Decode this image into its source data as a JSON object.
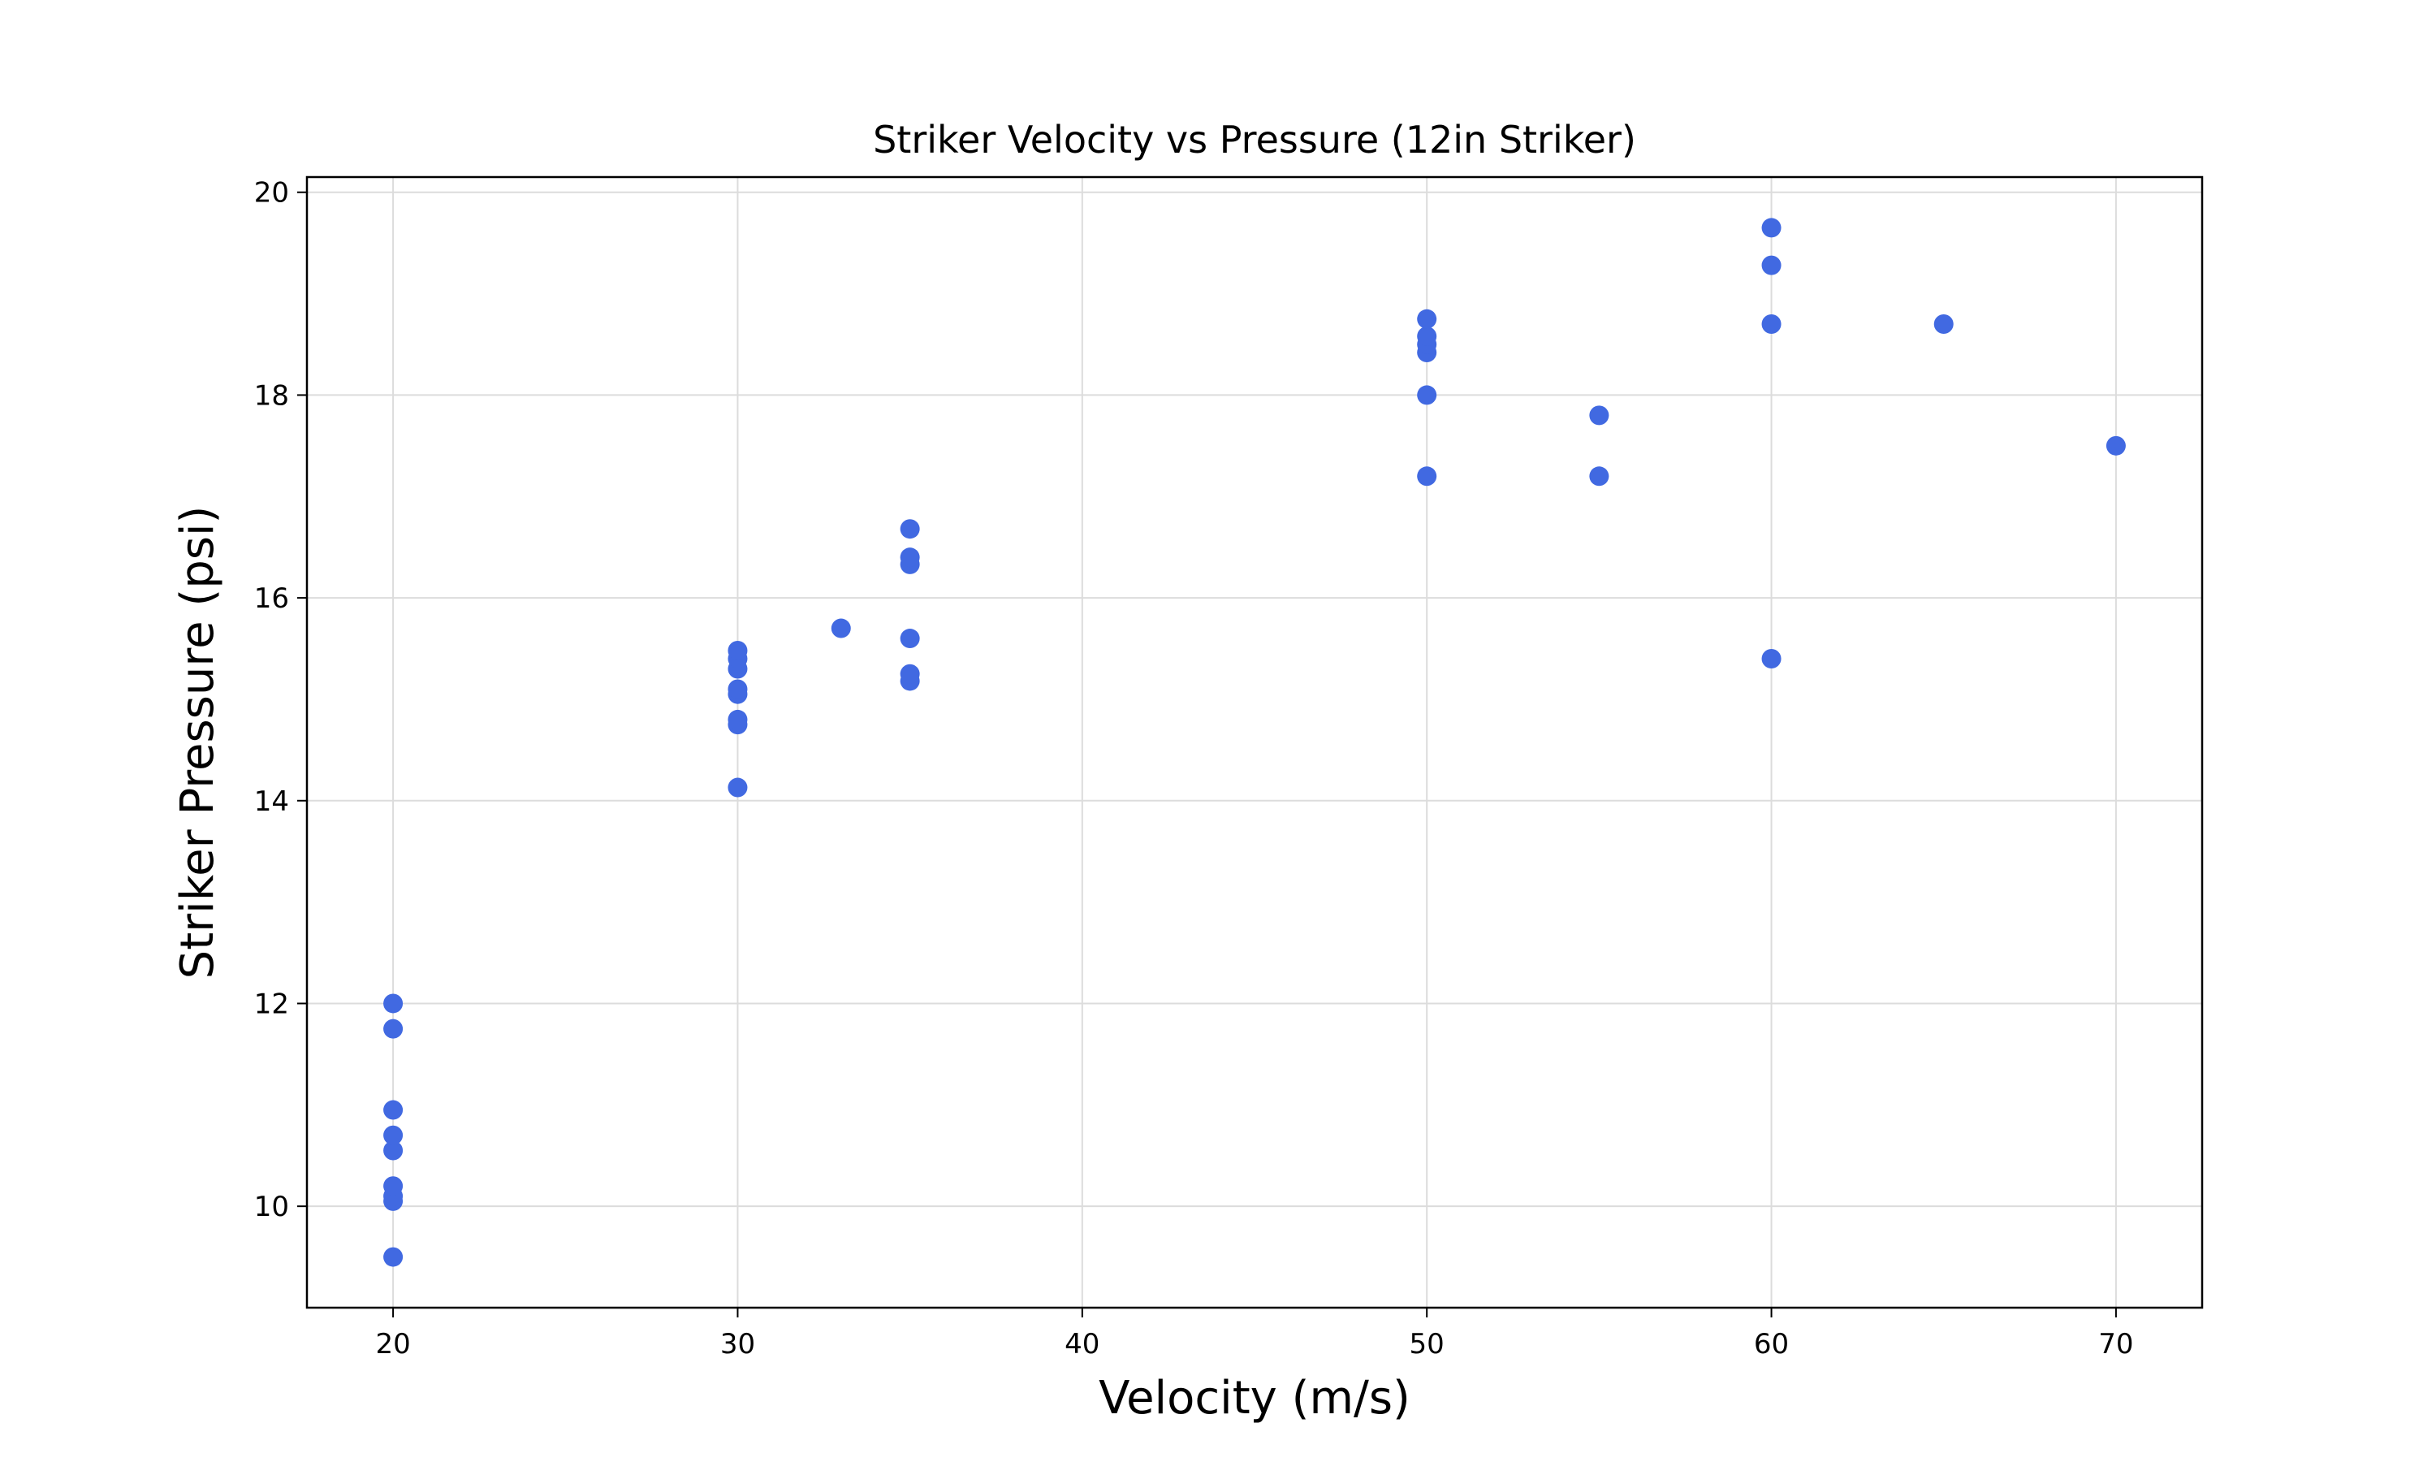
{
  "chart_data": {
    "type": "scatter",
    "title": "Striker Velocity vs Pressure (12in Striker)",
    "xlabel": "Velocity (m/s)",
    "ylabel": "Striker Pressure (psi)",
    "xlim": [
      17.5,
      72.5
    ],
    "ylim": [
      9.0,
      20.15
    ],
    "xticks": [
      20,
      30,
      40,
      50,
      60,
      70
    ],
    "yticks": [
      10,
      12,
      14,
      16,
      18,
      20
    ],
    "grid": true,
    "marker_color": "#4169e1",
    "points": [
      {
        "x": 20,
        "y": 9.5
      },
      {
        "x": 20,
        "y": 10.05
      },
      {
        "x": 20,
        "y": 10.1
      },
      {
        "x": 20,
        "y": 10.2
      },
      {
        "x": 20,
        "y": 10.55
      },
      {
        "x": 20,
        "y": 10.7
      },
      {
        "x": 20,
        "y": 10.95
      },
      {
        "x": 20,
        "y": 11.75
      },
      {
        "x": 20,
        "y": 12.0
      },
      {
        "x": 30,
        "y": 14.13
      },
      {
        "x": 30,
        "y": 14.75
      },
      {
        "x": 30,
        "y": 14.8
      },
      {
        "x": 30,
        "y": 15.05
      },
      {
        "x": 30,
        "y": 15.1
      },
      {
        "x": 30,
        "y": 15.3
      },
      {
        "x": 30,
        "y": 15.4
      },
      {
        "x": 30,
        "y": 15.48
      },
      {
        "x": 33,
        "y": 15.7
      },
      {
        "x": 35,
        "y": 15.18
      },
      {
        "x": 35,
        "y": 15.25
      },
      {
        "x": 35,
        "y": 15.6
      },
      {
        "x": 35,
        "y": 16.33
      },
      {
        "x": 35,
        "y": 16.4
      },
      {
        "x": 35,
        "y": 16.68
      },
      {
        "x": 50,
        "y": 17.2
      },
      {
        "x": 50,
        "y": 18.0
      },
      {
        "x": 50,
        "y": 18.42
      },
      {
        "x": 50,
        "y": 18.5
      },
      {
        "x": 50,
        "y": 18.58
      },
      {
        "x": 50,
        "y": 18.75
      },
      {
        "x": 55,
        "y": 17.2
      },
      {
        "x": 55,
        "y": 17.8
      },
      {
        "x": 60,
        "y": 15.4
      },
      {
        "x": 60,
        "y": 18.7
      },
      {
        "x": 60,
        "y": 19.28
      },
      {
        "x": 60,
        "y": 19.65
      },
      {
        "x": 65,
        "y": 18.7
      },
      {
        "x": 70,
        "y": 17.5
      }
    ]
  }
}
